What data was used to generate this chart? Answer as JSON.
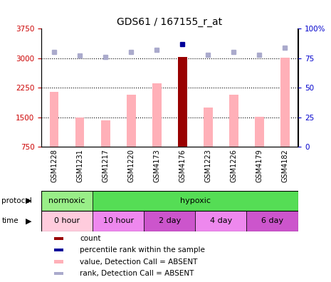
{
  "title": "GDS61 / 167155_r_at",
  "samples": [
    "GSM1228",
    "GSM1231",
    "GSM1217",
    "GSM1220",
    "GSM4173",
    "GSM4176",
    "GSM1223",
    "GSM1226",
    "GSM4179",
    "GSM4182"
  ],
  "values": [
    2150,
    1490,
    1430,
    2080,
    2370,
    3020,
    1740,
    2080,
    1520,
    3010
  ],
  "ranks": [
    80,
    77,
    76,
    80,
    82,
    87,
    78,
    80,
    78,
    84
  ],
  "count_sample_index": 5,
  "ylim_left": [
    750,
    3750
  ],
  "ylim_right": [
    0,
    100
  ],
  "yticks_left": [
    750,
    1500,
    2250,
    3000,
    3750
  ],
  "yticks_right": [
    0,
    25,
    50,
    75,
    100
  ],
  "ytick_labels_left": [
    "750",
    "1500",
    "2250",
    "3000",
    "3750"
  ],
  "ytick_labels_right": [
    "0",
    "25",
    "50",
    "75",
    "100%"
  ],
  "grid_values": [
    1500,
    2250,
    3000
  ],
  "bar_color_absent": "#FFB0B8",
  "bar_color_count": "#990000",
  "rank_color_absent": "#AAAACC",
  "rank_color_count": "#000099",
  "protocol_row": [
    {
      "label": "normoxic",
      "start": 0,
      "end": 2,
      "color": "#99EE88"
    },
    {
      "label": "hypoxic",
      "start": 2,
      "end": 10,
      "color": "#55DD55"
    }
  ],
  "time_row": [
    {
      "label": "0 hour",
      "start": 0,
      "end": 2,
      "color": "#FFCCDD"
    },
    {
      "label": "10 hour",
      "start": 2,
      "end": 4,
      "color": "#EE88EE"
    },
    {
      "label": "2 day",
      "start": 4,
      "end": 6,
      "color": "#CC55CC"
    },
    {
      "label": "4 day",
      "start": 6,
      "end": 8,
      "color": "#EE88EE"
    },
    {
      "label": "6 day",
      "start": 8,
      "end": 10,
      "color": "#CC55CC"
    }
  ],
  "legend_items": [
    {
      "label": "count",
      "color": "#990000"
    },
    {
      "label": "percentile rank within the sample",
      "color": "#000099"
    },
    {
      "label": "value, Detection Call = ABSENT",
      "color": "#FFB0B8"
    },
    {
      "label": "rank, Detection Call = ABSENT",
      "color": "#AAAACC"
    }
  ],
  "left_axis_color": "#CC0000",
  "right_axis_color": "#0000CC",
  "bar_width": 0.35
}
